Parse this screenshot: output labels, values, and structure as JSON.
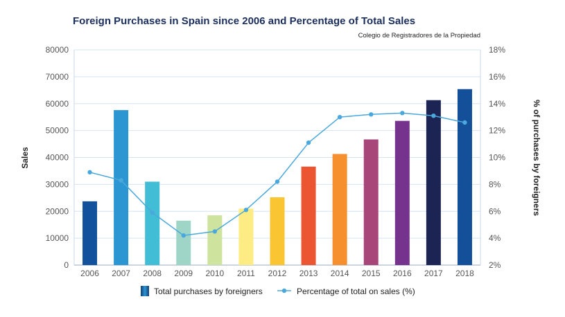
{
  "chart_data": {
    "type": "bar+line",
    "title": "Foreign Purchases in Spain since 2006 and Percentage of Total Sales",
    "source": "Colegio de Registradores de la Propiedad",
    "categories": [
      "2006",
      "2007",
      "2008",
      "2009",
      "2010",
      "2011",
      "2012",
      "2013",
      "2014",
      "2015",
      "2016",
      "2017",
      "2018"
    ],
    "series": [
      {
        "name": "Total purchases by foreigners",
        "type": "bar",
        "axis": "left",
        "values": [
          23700,
          57600,
          31000,
          16500,
          18500,
          21000,
          25200,
          36600,
          41300,
          46700,
          53600,
          61300,
          65400
        ],
        "colors": [
          "#12529c",
          "#2c96d2",
          "#41bdd6",
          "#9ed5c6",
          "#cde39e",
          "#fdec84",
          "#fac533",
          "#ec5531",
          "#f6902f",
          "#a84679",
          "#76338e",
          "#1b2452",
          "#14509a"
        ]
      },
      {
        "name": "Percentage of total on sales (%)",
        "type": "line",
        "axis": "right",
        "color": "#4aa8dc",
        "values": [
          8.9,
          8.3,
          5.9,
          4.2,
          4.5,
          6.1,
          8.2,
          11.1,
          13.0,
          13.2,
          13.3,
          13.1,
          12.6
        ]
      }
    ],
    "ylabel": "Sales",
    "ylabel_right": "% of purchases by foreigners",
    "ylim": [
      0,
      80000
    ],
    "yticks": [
      "0",
      "10000",
      "20000",
      "30000",
      "40000",
      "50000",
      "60000",
      "70000",
      "80000"
    ],
    "ylim_right": [
      2,
      18
    ],
    "yticks_right": [
      "2%",
      "4%",
      "6%",
      "8%",
      "10%",
      "12%",
      "14%",
      "16%",
      "18%"
    ],
    "grid": true,
    "legend_position": "bottom-center"
  }
}
